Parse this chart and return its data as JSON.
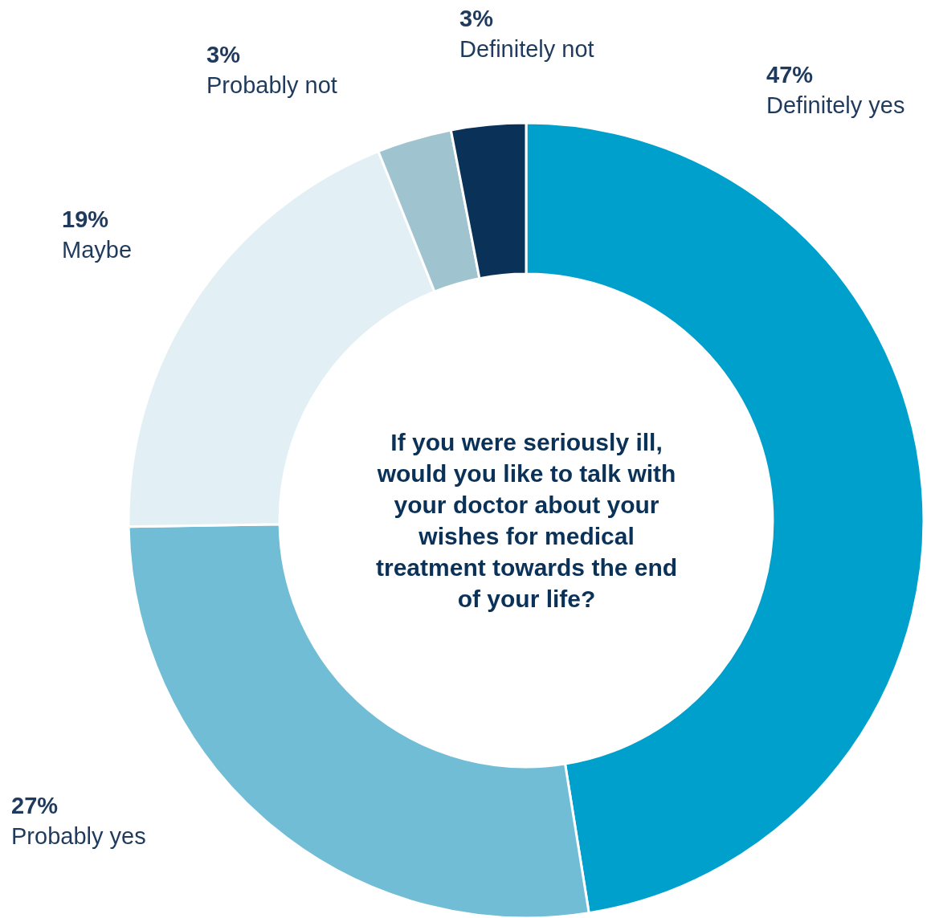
{
  "chart_data": {
    "type": "donut",
    "title": "If you were seriously ill, would you like to talk with your doctor about your wishes for medical treatment towards the end of your life?",
    "categories": [
      "Definitely yes",
      "Probably yes",
      "Maybe",
      "Probably not",
      "Definitely not"
    ],
    "values": [
      47,
      27,
      19,
      3,
      3
    ],
    "value_labels": [
      "47%",
      "27%",
      "19%",
      "3%",
      "3%"
    ],
    "colors": [
      "#00a0cc",
      "#72bdd6",
      "#e2f0f5",
      "#9fc3cf",
      "#0a3158"
    ],
    "legend": false
  }
}
